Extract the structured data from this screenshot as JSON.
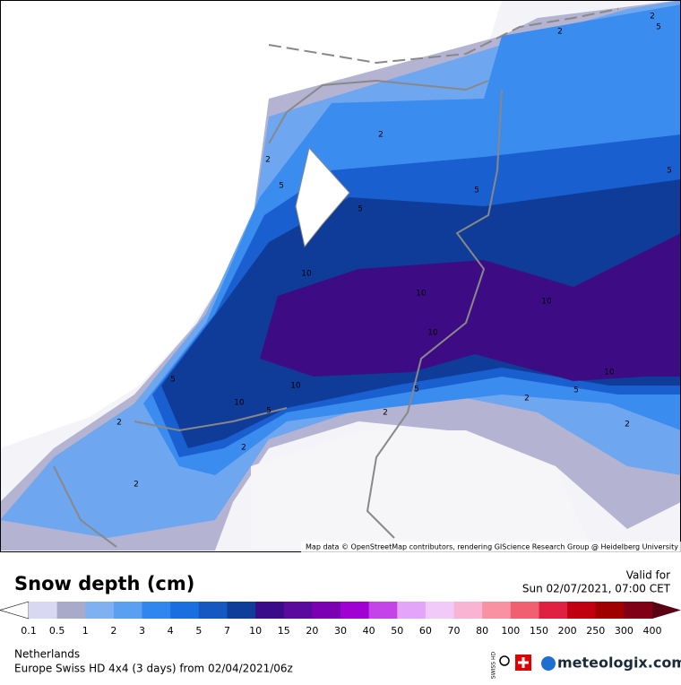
{
  "map": {
    "attribution": "Map data © OpenStreetMap contributors, rendering GIScience Research Group @ Heidelberg University",
    "contour_labels": [
      2,
      5,
      2,
      2,
      2,
      5,
      5,
      5,
      5,
      10,
      10,
      10,
      10,
      10,
      10,
      10,
      5,
      5,
      5,
      5,
      2,
      2,
      2,
      2,
      2,
      2
    ]
  },
  "legend": {
    "title": "Snow depth (cm)",
    "valid_label": "Valid for",
    "valid_time": "Sun 02/07/2021, 07:00 CET",
    "levels": [
      0.1,
      0.5,
      1,
      2,
      3,
      4,
      5,
      7,
      10,
      15,
      20,
      30,
      40,
      50,
      60,
      70,
      80,
      100,
      150,
      200,
      250,
      300,
      400
    ],
    "colors": [
      "#ffffff",
      "#d8d8f2",
      "#a9a9c9",
      "#7fb0f2",
      "#5a9ff2",
      "#2f86ee",
      "#1a6fe0",
      "#1558c2",
      "#0e3e9a",
      "#3a0c8a",
      "#5a0a9c",
      "#7a00b2",
      "#a000d2",
      "#c444ea",
      "#e4a4fa",
      "#f2cafa",
      "#f8b4d2",
      "#f892a2",
      "#f06070",
      "#e02040",
      "#c00010",
      "#a00000",
      "#800014",
      "#5a0012"
    ]
  },
  "footer": {
    "region": "Netherlands",
    "model": "Europe Swiss HD 4x4 (3 days) from 02/04/2021/06z",
    "logo_badge": "SWISS HD",
    "brand": "meteologix.com"
  }
}
